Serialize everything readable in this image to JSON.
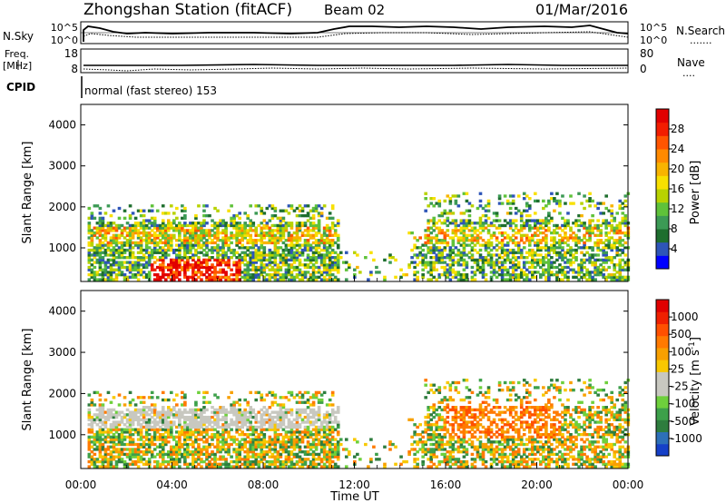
{
  "header": {
    "station": "Zhongshan Station (fitACF)",
    "beam": "Beam 02",
    "date": "01/Mar/2016",
    "cpid_label": "CPID",
    "cpid_value": "normal (fast stereo) 153"
  },
  "noise_panel": {
    "left_label": "N.Sky",
    "right_label": "N.Search",
    "ticks": [
      "10^5",
      "10^0"
    ],
    "right_legend": "......."
  },
  "freq_panel": {
    "left_label_1": "Freq.",
    "left_label_2": "[MHz]",
    "left_ticks": [
      "18",
      "8"
    ],
    "right_label": "Nave",
    "right_ticks": [
      "80",
      "0"
    ],
    "right_legend": "...."
  },
  "chart_data": [
    {
      "type": "heatmap",
      "name": "power",
      "ylabel": "Slant Range [km]",
      "xlabel": "",
      "ylim": [
        180,
        4500
      ],
      "xlim": [
        0,
        24
      ],
      "y_ticks": [
        "1000",
        "2000",
        "3000",
        "4000"
      ],
      "colorbar": {
        "label": "Power [dB]",
        "ticks": [
          "4",
          "8",
          "12",
          "16",
          "20",
          "24",
          "28"
        ],
        "colors": [
          "#0000ff",
          "#2e55b8",
          "#1e6e2e",
          "#3c9a55",
          "#5fc23a",
          "#b8d200",
          "#f8e000",
          "#f8b400",
          "#ff8a00",
          "#ff5500",
          "#f21d00",
          "#e10000"
        ]
      }
    },
    {
      "type": "heatmap",
      "name": "velocity",
      "ylabel": "Slant Range [km]",
      "xlabel": "Time UT",
      "ylim": [
        180,
        4500
      ],
      "xlim": [
        0,
        24
      ],
      "y_ticks": [
        "1000",
        "2000",
        "3000",
        "4000"
      ],
      "x_ticks": [
        "00:00",
        "04:00",
        "08:00",
        "12:00",
        "16:00",
        "20:00",
        "00:00"
      ],
      "colorbar": {
        "label": "Velocity [m s",
        "label_sup": "-1",
        "label_close": "]",
        "ticks": [
          "1000",
          "500",
          "100",
          "25",
          "-25",
          "-100",
          "-500",
          "-1000"
        ],
        "colors": [
          "#1540c8",
          "#2d70b8",
          "#2e7d3e",
          "#3da04a",
          "#6ed03c",
          "#c8c8c0",
          "#c8c8c0",
          "#f8c800",
          "#f8a000",
          "#ff7a00",
          "#ff5000",
          "#f02000",
          "#e00000"
        ]
      }
    }
  ]
}
